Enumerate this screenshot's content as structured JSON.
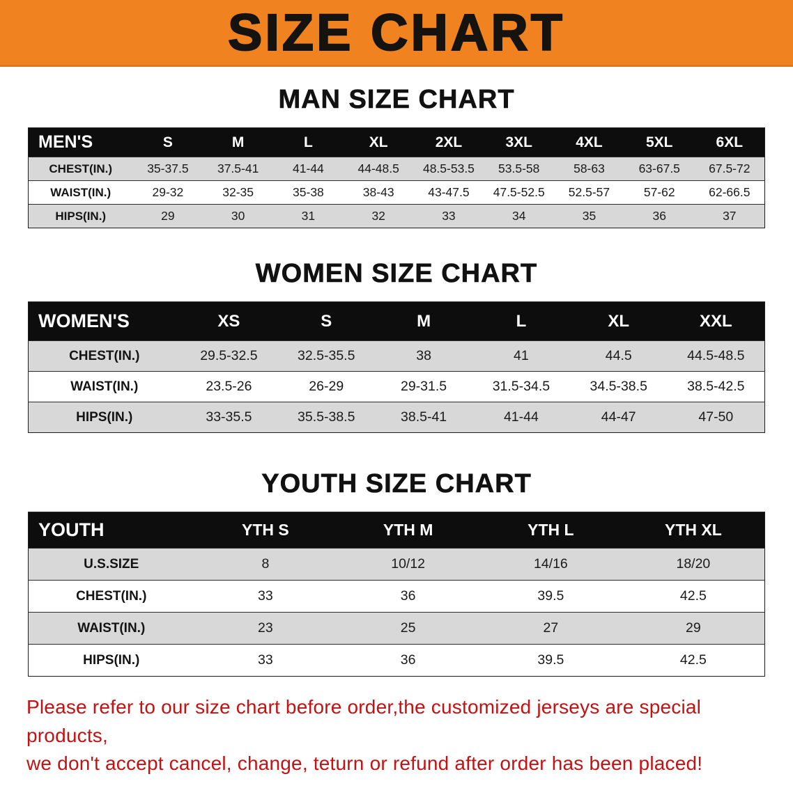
{
  "banner": {
    "title": "SIZE CHART",
    "bg_color": "#f0831f",
    "text_color": "#15130f"
  },
  "footer": {
    "line1": "Please refer to our size chart before order,the customized jerseys are special products,",
    "line2": "we don't accept cancel, change, teturn or refund after order has been placed!",
    "color": "#c41111"
  },
  "colors": {
    "header_row_bg": "#0d0d0d",
    "shaded_row_bg": "#d8d8d8",
    "banner_orange": "#f0831f"
  },
  "chart_data": [
    {
      "type": "table",
      "title": "MAN SIZE CHART",
      "header_label": "MEN'S",
      "columns": [
        "S",
        "M",
        "L",
        "XL",
        "2XL",
        "3XL",
        "4XL",
        "5XL",
        "6XL"
      ],
      "rows": [
        {
          "label": "CHEST(IN.)",
          "values": [
            "35-37.5",
            "37.5-41",
            "41-44",
            "44-48.5",
            "48.5-53.5",
            "53.5-58",
            "58-63",
            "63-67.5",
            "67.5-72"
          ]
        },
        {
          "label": "WAIST(IN.)",
          "values": [
            "29-32",
            "32-35",
            "35-38",
            "38-43",
            "43-47.5",
            "47.5-52.5",
            "52.5-57",
            "57-62",
            "62-66.5"
          ]
        },
        {
          "label": "HIPS(IN.)",
          "values": [
            "29",
            "30",
            "31",
            "32",
            "33",
            "34",
            "35",
            "36",
            "37"
          ]
        }
      ]
    },
    {
      "type": "table",
      "title": "WOMEN SIZE CHART",
      "header_label": "WOMEN'S",
      "columns": [
        "XS",
        "S",
        "M",
        "L",
        "XL",
        "XXL"
      ],
      "rows": [
        {
          "label": "CHEST(IN.)",
          "values": [
            "29.5-32.5",
            "32.5-35.5",
            "38",
            "41",
            "44.5",
            "44.5-48.5"
          ]
        },
        {
          "label": "WAIST(IN.)",
          "values": [
            "23.5-26",
            "26-29",
            "29-31.5",
            "31.5-34.5",
            "34.5-38.5",
            "38.5-42.5"
          ]
        },
        {
          "label": "HIPS(IN.)",
          "values": [
            "33-35.5",
            "35.5-38.5",
            "38.5-41",
            "41-44",
            "44-47",
            "47-50"
          ]
        }
      ]
    },
    {
      "type": "table",
      "title": "YOUTH SIZE CHART",
      "header_label": "YOUTH",
      "columns": [
        "YTH S",
        "YTH M",
        "YTH L",
        "YTH XL"
      ],
      "rows": [
        {
          "label": "U.S.SIZE",
          "values": [
            "8",
            "10/12",
            "14/16",
            "18/20"
          ]
        },
        {
          "label": "CHEST(IN.)",
          "values": [
            "33",
            "36",
            "39.5",
            "42.5"
          ]
        },
        {
          "label": "WAIST(IN.)",
          "values": [
            "23",
            "25",
            "27",
            "29"
          ]
        },
        {
          "label": "HIPS(IN.)",
          "values": [
            "33",
            "36",
            "39.5",
            "42.5"
          ]
        }
      ]
    }
  ]
}
